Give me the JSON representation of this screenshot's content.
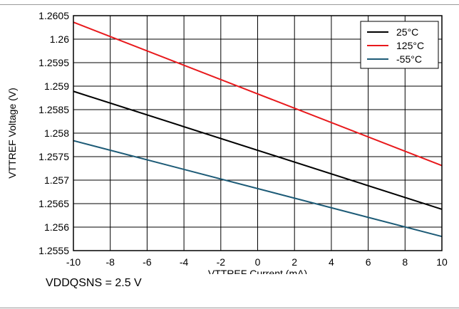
{
  "caption": "VDDQSNS = 2.5 V",
  "chart_data": {
    "type": "line",
    "xlabel": "VTTREF Current (mA)",
    "ylabel": "VTTREF Voltage (V)",
    "xlim": [
      -10,
      10
    ],
    "ylim": [
      1.2555,
      1.2605
    ],
    "x_ticks": [
      "-10",
      "-8",
      "-6",
      "-4",
      "-2",
      "0",
      "2",
      "4",
      "6",
      "8",
      "10"
    ],
    "y_ticks": [
      "1.2555",
      "1.256",
      "1.2565",
      "1.257",
      "1.2575",
      "1.258",
      "1.2585",
      "1.259",
      "1.2595",
      "1.26",
      "1.2605"
    ],
    "grid": true,
    "legend_position": "top-right",
    "series": [
      {
        "name": "25°C",
        "color": "#000000",
        "x": [
          -10,
          10
        ],
        "y": [
          1.25889,
          1.25638
        ]
      },
      {
        "name": "125°C",
        "color": "#e8191c",
        "x": [
          -10,
          10
        ],
        "y": [
          1.26036,
          1.25731
        ]
      },
      {
        "name": "-55°C",
        "color": "#1d5b77",
        "x": [
          -10,
          10
        ],
        "y": [
          1.25784,
          1.2558
        ]
      }
    ]
  }
}
